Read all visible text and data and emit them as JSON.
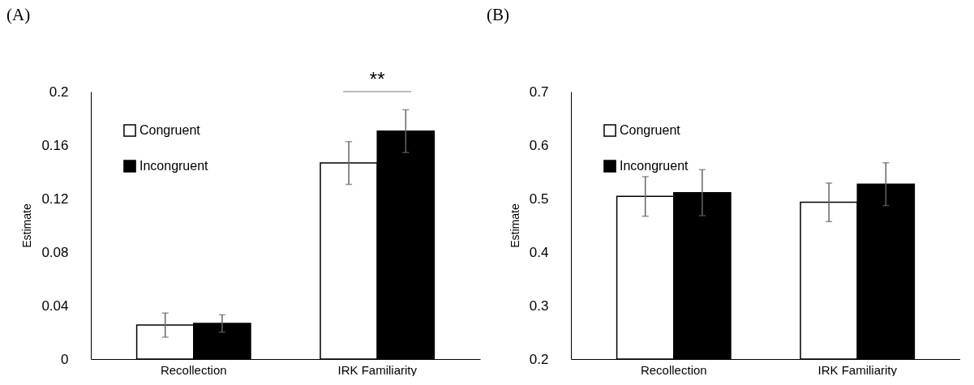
{
  "chart_data": [
    {
      "type": "bar",
      "title": "(A)",
      "ylabel": "Estimate",
      "categories": [
        "Recollection",
        "IRK Familiarity"
      ],
      "series": [
        {
          "name": "Congruent",
          "color": "#ffffff",
          "values": [
            0.0254,
            0.1466
          ],
          "errors": [
            0.009,
            0.016
          ]
        },
        {
          "name": "Incongruent",
          "color": "#000000",
          "values": [
            0.0266,
            0.1704
          ],
          "errors": [
            0.0065,
            0.016
          ]
        }
      ],
      "ylim": [
        0,
        0.2
      ],
      "yticks": [
        0,
        0.04,
        0.08,
        0.12,
        0.16,
        0.2
      ],
      "legend": "top left",
      "annotations": [
        "**"
      ]
    },
    {
      "type": "bar",
      "title": "(B)",
      "ylabel": "Estimate",
      "categories": [
        "Recollection",
        "IRK Familiarity"
      ],
      "series": [
        {
          "name": "Congruent",
          "color": "#ffffff",
          "values": [
            0.504,
            0.493
          ],
          "errors": [
            0.037,
            0.036
          ]
        },
        {
          "name": "Incongruent",
          "color": "#000000",
          "values": [
            0.511,
            0.527
          ],
          "errors": [
            0.043,
            0.04
          ]
        }
      ],
      "ylim": [
        0.2,
        0.7
      ],
      "yticks": [
        0.2,
        0.3,
        0.4,
        0.5,
        0.6,
        0.7
      ],
      "legend": "top left"
    }
  ]
}
